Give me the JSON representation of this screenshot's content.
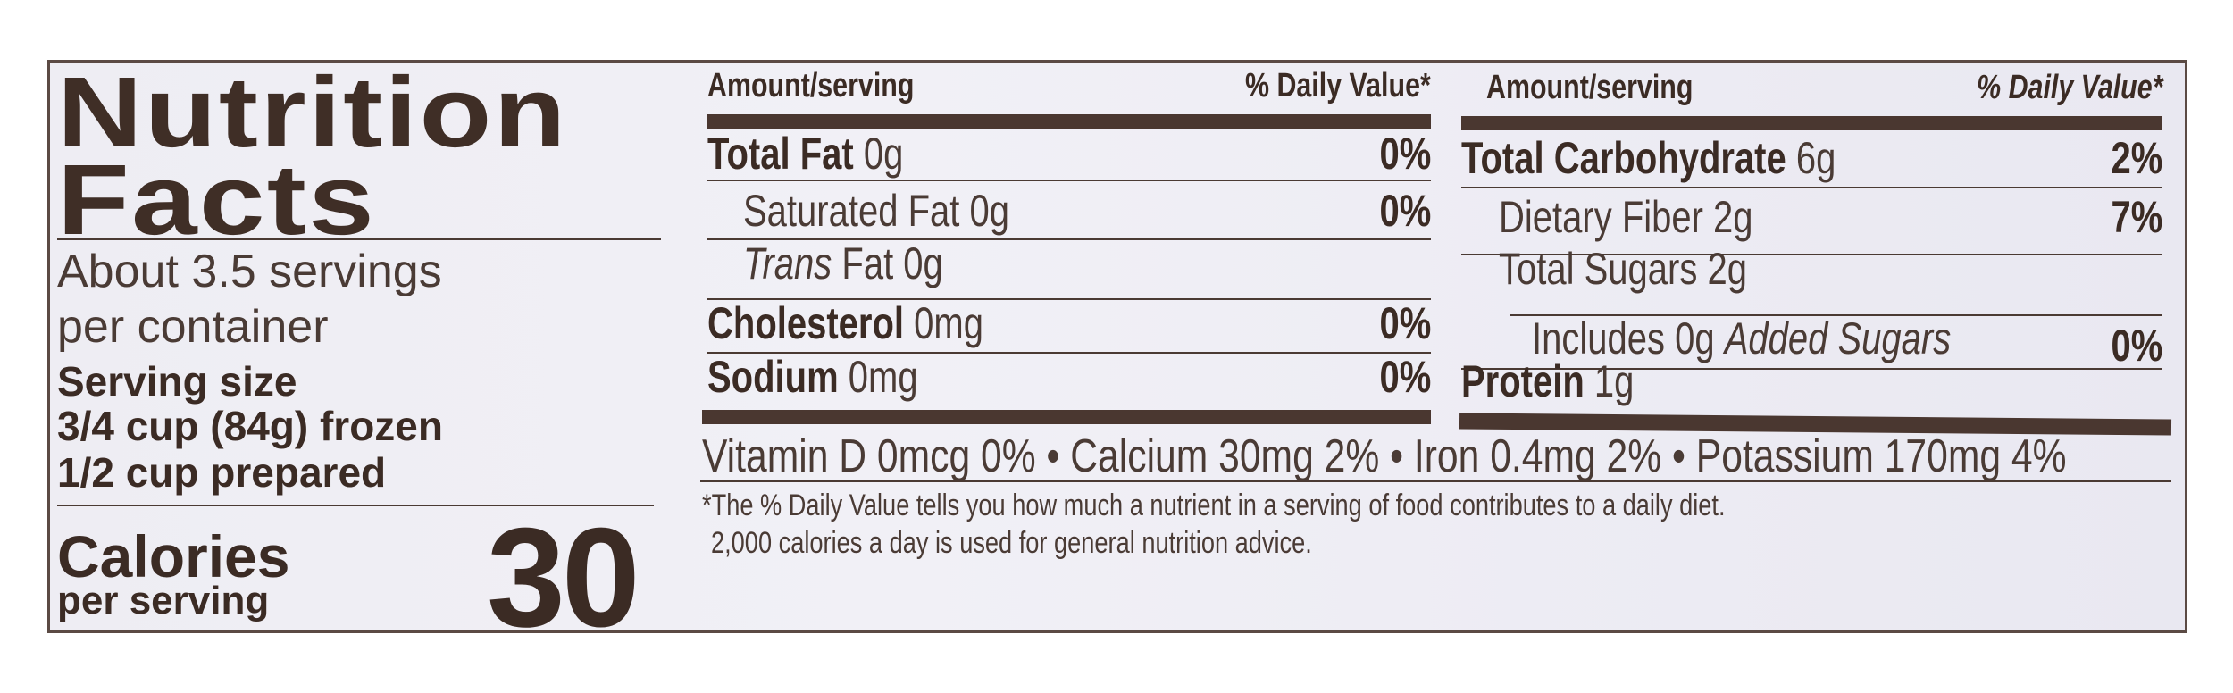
{
  "title": {
    "line1": "Nutrition",
    "line2": "Facts"
  },
  "servings": {
    "per_container_line1": "About 3.5 servings",
    "per_container_line2": "per container",
    "serving_size_label": "Serving size",
    "serving_size_line1": "3/4 cup (84g) frozen",
    "serving_size_line2": "1/2 cup prepared"
  },
  "calories": {
    "label": "Calories",
    "sublabel": "per serving",
    "value": "30"
  },
  "columns": [
    {
      "header_amount": "Amount/serving",
      "header_dv": "% Daily Value*",
      "rows": [
        {
          "name": "Total Fat",
          "amount": "0g",
          "dv": "0%"
        },
        {
          "name": "Saturated Fat 0g",
          "dv": "0%"
        },
        {
          "name_italic": "Trans",
          "name": " Fat 0g"
        },
        {
          "name": "Cholesterol",
          "amount": "0mg",
          "dv": "0%"
        },
        {
          "name": "Sodium",
          "amount": "0mg",
          "dv": "0%"
        }
      ]
    },
    {
      "header_amount": "Amount/serving",
      "header_dv": "% Daily Value*",
      "rows": [
        {
          "name": "Total Carbohydrate",
          "amount": "6g",
          "dv": "2%"
        },
        {
          "name": "Dietary Fiber 2g",
          "dv": "7%"
        },
        {
          "name": "Total Sugars 2g"
        },
        {
          "name": "Includes 0g ",
          "name_italic": "Added Sugars",
          "dv": "0%"
        },
        {
          "name": "Protein",
          "amount": "1g"
        }
      ]
    }
  ],
  "vitamins": "Vitamin D 0mcg 0% • Calcium 30mg 2% • Iron 0.4mg 2% • Potassium 170mg 4%",
  "footnote": {
    "line1": "*The % Daily Value tells you how much a nutrient in a serving of food contributes to a daily diet.",
    "line2": "2,000 calories a day is used for general nutrition advice."
  },
  "colors": {
    "text": "#3b2b24",
    "border": "#5b4a44",
    "background": "#eeedf3"
  }
}
